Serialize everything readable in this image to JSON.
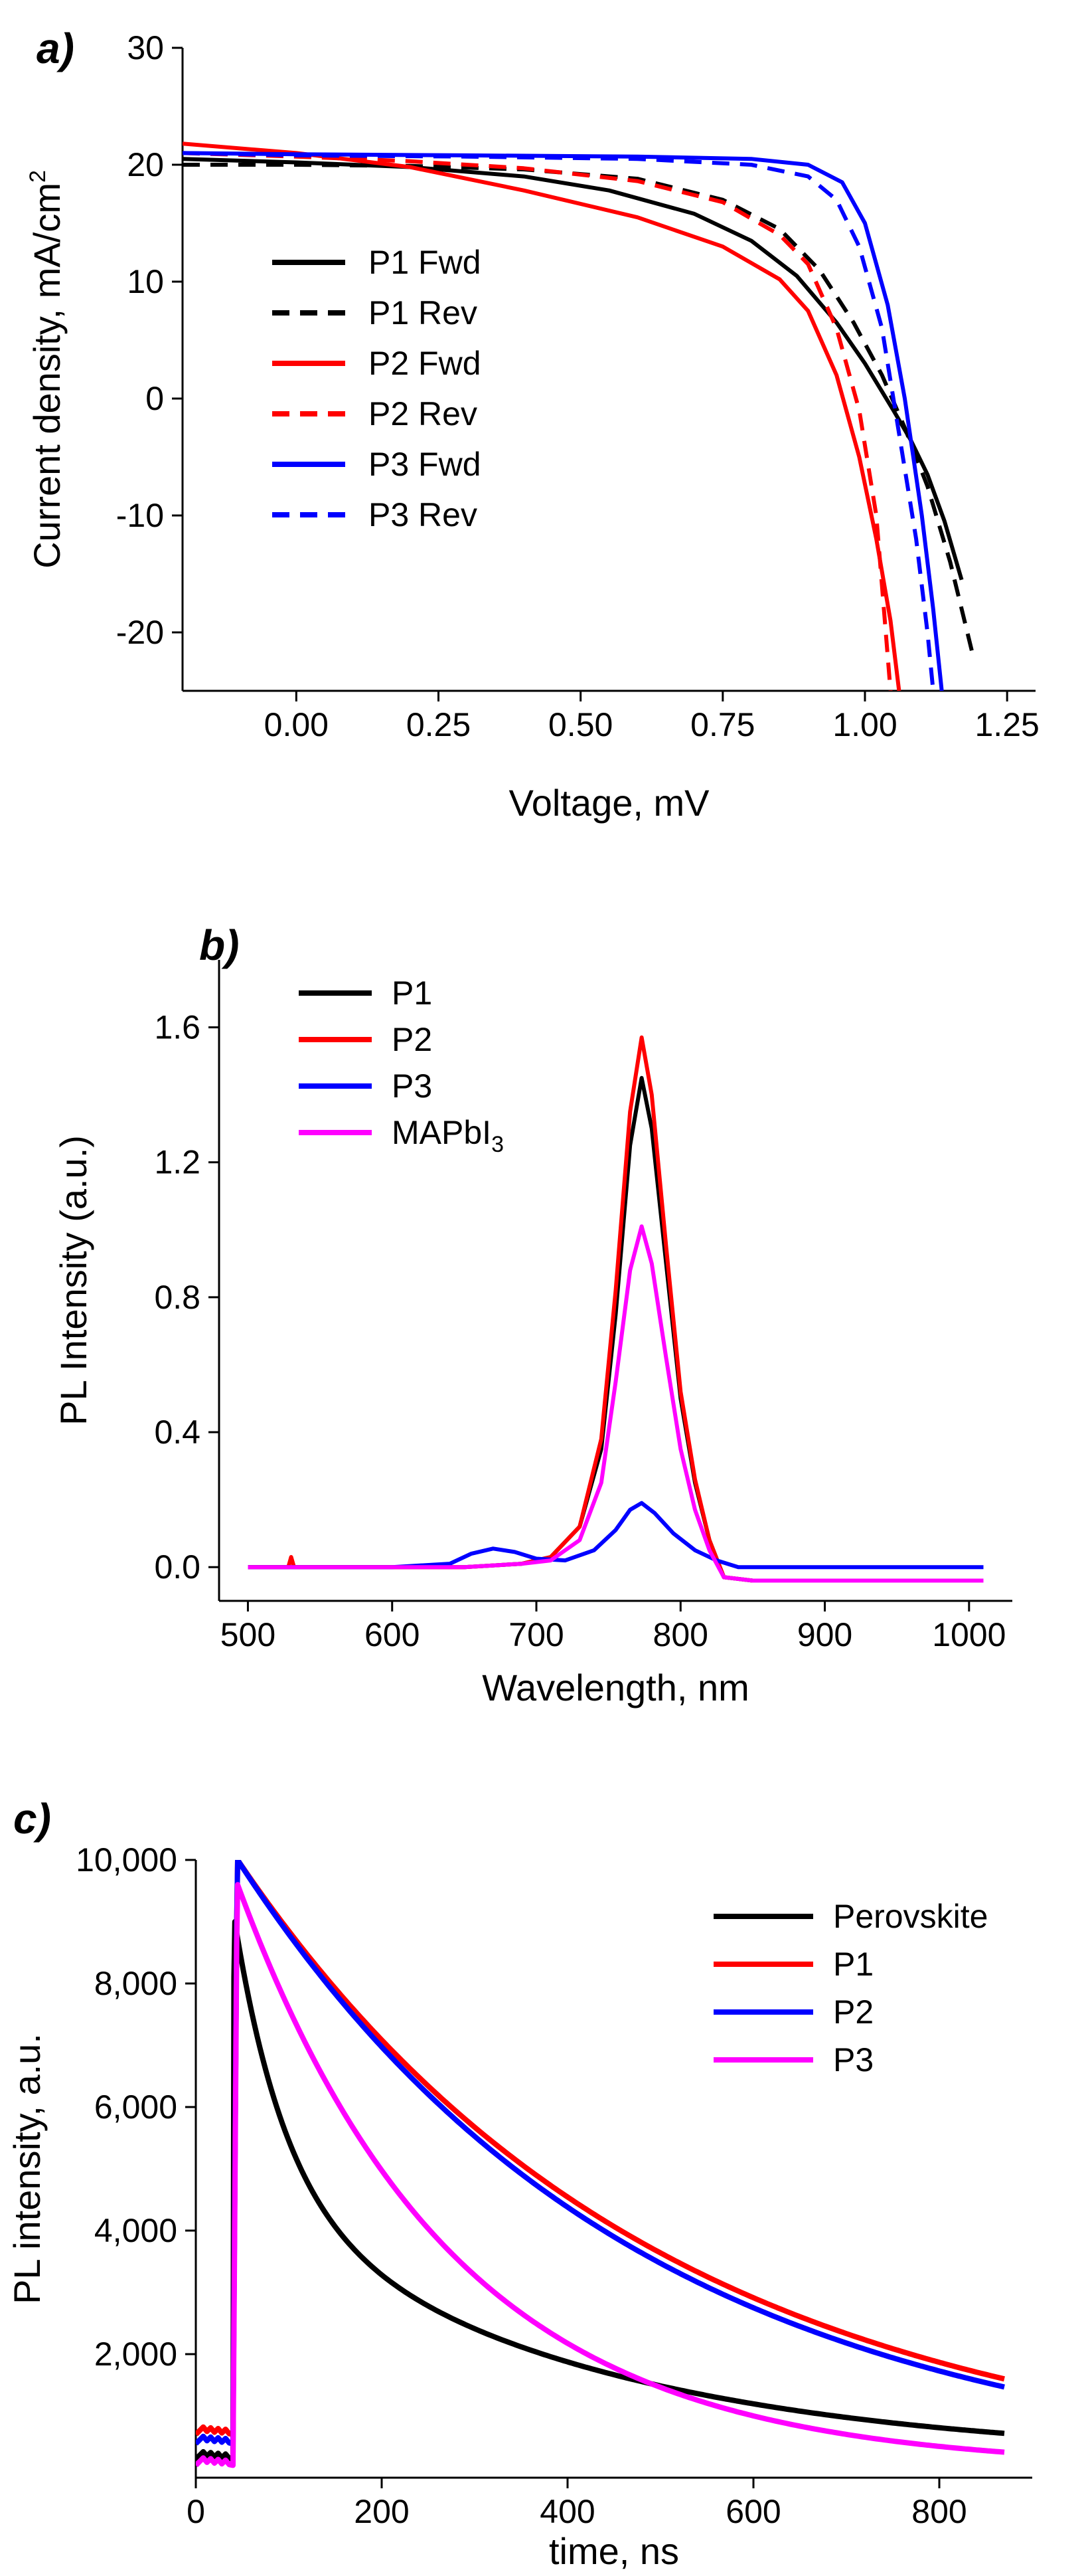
{
  "chart_data": [
    {
      "id": "a",
      "panel_label": "a)",
      "type": "line",
      "xlabel": "Voltage, mV",
      "ylabel_main": "Current density, mA/cm",
      "ylabel_sup": "2",
      "xlim": [
        -0.2,
        1.3
      ],
      "ylim": [
        -25,
        30
      ],
      "xticks": [
        0.0,
        0.25,
        0.5,
        0.75,
        1.0,
        1.25
      ],
      "xtick_labels": [
        "0.00",
        "0.25",
        "0.50",
        "0.75",
        "1.00",
        "1.25"
      ],
      "yticks": [
        -20,
        -10,
        0,
        10,
        20,
        30
      ],
      "ytick_labels": [
        "-20",
        "-10",
        "0",
        "10",
        "20",
        "30"
      ],
      "legend_position": "center-left",
      "series": [
        {
          "name": "P1 Fwd",
          "color": "#000000",
          "dash": "solid",
          "x": [
            -0.2,
            0.0,
            0.2,
            0.4,
            0.55,
            0.7,
            0.8,
            0.88,
            0.95,
            1.0,
            1.05,
            1.08,
            1.11,
            1.14,
            1.17
          ],
          "y": [
            20.5,
            20.2,
            19.8,
            19.0,
            17.8,
            15.8,
            13.5,
            10.5,
            6.5,
            3.0,
            -1.0,
            -3.5,
            -6.5,
            -10.5,
            -15.5
          ]
        },
        {
          "name": "P1 Rev",
          "color": "#000000",
          "dash": "dashed",
          "x": [
            -0.2,
            0.0,
            0.2,
            0.4,
            0.6,
            0.75,
            0.85,
            0.92,
            0.98,
            1.03,
            1.07,
            1.11,
            1.15,
            1.19
          ],
          "y": [
            20.0,
            20.0,
            19.9,
            19.6,
            18.8,
            17.0,
            14.5,
            11.0,
            6.5,
            2.0,
            -2.5,
            -7.5,
            -14.0,
            -22.0
          ]
        },
        {
          "name": "P2 Fwd",
          "color": "#ff0000",
          "dash": "solid",
          "x": [
            -0.2,
            0.0,
            0.2,
            0.4,
            0.6,
            0.75,
            0.85,
            0.9,
            0.95,
            0.99,
            1.02,
            1.045,
            1.06
          ],
          "y": [
            21.8,
            21.0,
            19.8,
            17.8,
            15.5,
            13.0,
            10.2,
            7.5,
            2.0,
            -5.0,
            -12.0,
            -19.0,
            -25.0
          ]
        },
        {
          "name": "P2 Rev",
          "color": "#ff0000",
          "dash": "dashed",
          "x": [
            -0.2,
            0.0,
            0.2,
            0.4,
            0.6,
            0.75,
            0.85,
            0.9,
            0.95,
            0.99,
            1.02,
            1.045
          ],
          "y": [
            21.0,
            20.7,
            20.3,
            19.7,
            18.6,
            16.8,
            14.0,
            11.5,
            6.0,
            -1.0,
            -10.0,
            -25.0
          ]
        },
        {
          "name": "P3 Fwd",
          "color": "#0000ff",
          "dash": "solid",
          "x": [
            -0.2,
            0.0,
            0.3,
            0.6,
            0.8,
            0.9,
            0.96,
            1.0,
            1.04,
            1.07,
            1.1,
            1.12,
            1.135
          ],
          "y": [
            21.0,
            20.9,
            20.8,
            20.7,
            20.5,
            20.0,
            18.5,
            15.0,
            8.0,
            0.0,
            -10.0,
            -18.0,
            -25.0
          ]
        },
        {
          "name": "P3 Rev",
          "color": "#0000ff",
          "dash": "dashed",
          "x": [
            -0.2,
            0.0,
            0.3,
            0.6,
            0.8,
            0.9,
            0.95,
            0.99,
            1.03,
            1.06,
            1.09,
            1.11,
            1.12
          ],
          "y": [
            21.0,
            20.8,
            20.7,
            20.5,
            20.0,
            19.0,
            17.0,
            13.0,
            6.0,
            -3.0,
            -12.0,
            -20.0,
            -25.0
          ]
        }
      ]
    },
    {
      "id": "b",
      "panel_label": "b)",
      "type": "line",
      "xlabel": "Wavelength, nm",
      "ylabel": "PL Intensity (a.u.)",
      "xlim": [
        480,
        1030
      ],
      "ylim": [
        -0.1,
        1.8
      ],
      "xticks": [
        500,
        600,
        700,
        800,
        900,
        1000
      ],
      "xtick_labels": [
        "500",
        "600",
        "700",
        "800",
        "900",
        "1000"
      ],
      "yticks": [
        0.0,
        0.4,
        0.8,
        1.2,
        1.6
      ],
      "ytick_labels": [
        "0.0",
        "0.4",
        "0.8",
        "1.2",
        "1.6"
      ],
      "legend_position": "top-left",
      "series": [
        {
          "name": "P1",
          "color": "#000000",
          "x": [
            500,
            600,
            650,
            690,
            710,
            730,
            745,
            755,
            765,
            773,
            780,
            790,
            800,
            810,
            820,
            830,
            850,
            900,
            950,
            1010
          ],
          "y": [
            0.0,
            0.0,
            0.0,
            0.01,
            0.03,
            0.12,
            0.35,
            0.75,
            1.25,
            1.45,
            1.3,
            0.9,
            0.5,
            0.25,
            0.08,
            -0.03,
            -0.04,
            -0.04,
            -0.04,
            -0.04
          ]
        },
        {
          "name": "P2",
          "color": "#ff0000",
          "x": [
            500,
            528,
            530,
            532,
            600,
            650,
            690,
            710,
            730,
            745,
            755,
            765,
            773,
            780,
            790,
            800,
            810,
            820,
            830,
            850,
            900,
            950,
            1010
          ],
          "y": [
            0.0,
            0.0,
            0.03,
            0.0,
            0.0,
            0.0,
            0.01,
            0.03,
            0.12,
            0.38,
            0.82,
            1.35,
            1.57,
            1.4,
            0.95,
            0.52,
            0.26,
            0.08,
            -0.03,
            -0.04,
            -0.04,
            -0.04,
            -0.04
          ]
        },
        {
          "name": "P3",
          "color": "#0000ff",
          "x": [
            500,
            600,
            640,
            655,
            670,
            685,
            700,
            720,
            740,
            755,
            765,
            773,
            782,
            795,
            810,
            825,
            840,
            900,
            950,
            1010
          ],
          "y": [
            0.0,
            0.0,
            0.01,
            0.04,
            0.055,
            0.045,
            0.025,
            0.02,
            0.05,
            0.11,
            0.17,
            0.19,
            0.16,
            0.1,
            0.05,
            0.02,
            0.0,
            0.0,
            0.0,
            0.0
          ]
        },
        {
          "name": "MAPbI3",
          "name_main": "MAPbI",
          "name_sub": "3",
          "color": "#ff00ff",
          "x": [
            500,
            600,
            650,
            690,
            710,
            730,
            745,
            755,
            765,
            773,
            780,
            790,
            800,
            810,
            820,
            830,
            850,
            900,
            950,
            1010
          ],
          "y": [
            0.0,
            0.0,
            0.0,
            0.01,
            0.02,
            0.08,
            0.25,
            0.55,
            0.88,
            1.01,
            0.9,
            0.62,
            0.35,
            0.17,
            0.05,
            -0.03,
            -0.04,
            -0.04,
            -0.04,
            -0.04
          ]
        }
      ]
    },
    {
      "id": "c",
      "panel_label": "c)",
      "type": "line",
      "xlabel": "time, ns",
      "ylabel": "PL intensity, a.u.",
      "xlim": [
        0,
        900
      ],
      "ylim": [
        0,
        10000
      ],
      "xticks": [
        0,
        200,
        400,
        600,
        800
      ],
      "xtick_labels": [
        "0",
        "200",
        "400",
        "600",
        "800"
      ],
      "yticks": [
        2000,
        4000,
        6000,
        8000,
        10000
      ],
      "ytick_labels": [
        "2,000",
        "4,000",
        "6,000",
        "8,000",
        "10,000"
      ],
      "legend_position": "top-right",
      "series": [
        {
          "name": "Perovskite",
          "color": "#000000",
          "tau": 55,
          "a1": 0.5,
          "tau2": 350,
          "a2": 0.5,
          "start": 300,
          "peak_t": 42,
          "peak": 9000,
          "floor": 300
        },
        {
          "name": "P1",
          "color": "#ff0000",
          "tau": 450,
          "a1": 1.0,
          "tau2": 450,
          "a2": 0.0,
          "start": 700,
          "peak_t": 45,
          "peak": 10000,
          "floor": 0
        },
        {
          "name": "P2",
          "color": "#0000ff",
          "tau": 430,
          "a1": 1.0,
          "tau2": 430,
          "a2": 0.0,
          "start": 550,
          "peak_t": 45,
          "peak": 10000,
          "floor": 0
        },
        {
          "name": "P3",
          "color": "#ff00ff",
          "tau": 230,
          "a1": 1.0,
          "tau2": 230,
          "a2": 0.0,
          "start": 200,
          "peak_t": 45,
          "peak": 9600,
          "floor": 150
        }
      ]
    }
  ]
}
